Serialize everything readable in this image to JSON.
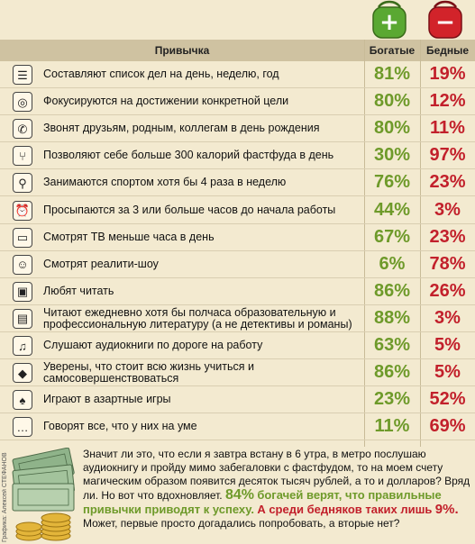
{
  "header": {
    "habit": "Привычка",
    "rich": "Богатые",
    "poor": "Бедные"
  },
  "wallets": {
    "rich_symbol": "+",
    "poor_symbol": "−",
    "rich_color": "#5aa832",
    "poor_color": "#d2232a"
  },
  "colors": {
    "rich": "#6e9a2a",
    "poor": "#c2202b",
    "header_bg": "#cfc2a1",
    "page_bg": "#f3ead0"
  },
  "rows": [
    {
      "icon": "list-icon",
      "glyph": "☰",
      "text": "Составляют список дел на день, неделю, год",
      "rich": "81%",
      "poor": "19%"
    },
    {
      "icon": "target-icon",
      "glyph": "◎",
      "text": "Фокусируются на достижении конкретной цели",
      "rich": "80%",
      "poor": "12%"
    },
    {
      "icon": "phone-icon",
      "glyph": "✆",
      "text": "Звонят друзьям, родным, коллегам в день рождения",
      "rich": "80%",
      "poor": "11%"
    },
    {
      "icon": "fork-icon",
      "glyph": "⑂",
      "text": "Позволяют себе больше 300 калорий фастфуда в день",
      "rich": "30%",
      "poor": "97%"
    },
    {
      "icon": "runner-icon",
      "glyph": "⚲",
      "text": "Занимаются спортом хотя бы 4 раза в неделю",
      "rich": "76%",
      "poor": "23%"
    },
    {
      "icon": "alarm-clock-icon",
      "glyph": "⏰",
      "text": "Просыпаются за 3 или больше часов до начала работы",
      "rich": "44%",
      "poor": "3%"
    },
    {
      "icon": "tv-icon",
      "glyph": "▭",
      "text": "Смотрят ТВ меньше часа в день",
      "rich": "67%",
      "poor": "23%"
    },
    {
      "icon": "reality-tv-icon",
      "glyph": "☺",
      "text": "Смотрят реалити-шоу",
      "rich": "6%",
      "poor": "78%"
    },
    {
      "icon": "book-icon",
      "glyph": "▣",
      "text": "Любят читать",
      "rich": "86%",
      "poor": "26%"
    },
    {
      "icon": "books-icon",
      "glyph": "▤",
      "text": "Читают ежедневно хотя бы полчаса образовательную и профессиональную литературу (а не детективы и романы)",
      "rich": "88%",
      "poor": "3%"
    },
    {
      "icon": "headphones-icon",
      "glyph": "♫",
      "text": "Слушают аудиокниги по дороге на работу",
      "rich": "63%",
      "poor": "5%"
    },
    {
      "icon": "graduation-cap-icon",
      "glyph": "◆",
      "text": "Уверены, что стоит всю жизнь учиться и самосовершенствоваться",
      "rich": "86%",
      "poor": "5%"
    },
    {
      "icon": "spade-icon",
      "glyph": "♠",
      "text": "Играют в азартные игры",
      "rich": "23%",
      "poor": "52%"
    },
    {
      "icon": "speech-bubble-icon",
      "glyph": "…",
      "text": "Говорят все, что у них на уме",
      "rich": "11%",
      "poor": "69%"
    }
  ],
  "footer": {
    "p1": "Значит ли это, что если я завтра встану в 6 утра, в метро послушаю аудиокнигу и пройду мимо забегаловки с фастфудом, то на моем счету магическим образом появится десяток тысяч рублей, а то и долларов? Вряд ли. Но вот что вдохновляет.",
    "rich_pct": "84%",
    "rich_text": "богачей верят, что правильные привычки приводят к успеху.",
    "poor_text": "А среди бедняков таких лишь",
    "poor_pct": "9%.",
    "p2": "Может, первые просто догадались попробовать, а вторые нет?"
  },
  "credit": "Графика: Алексей СТЕФАНОВ"
}
